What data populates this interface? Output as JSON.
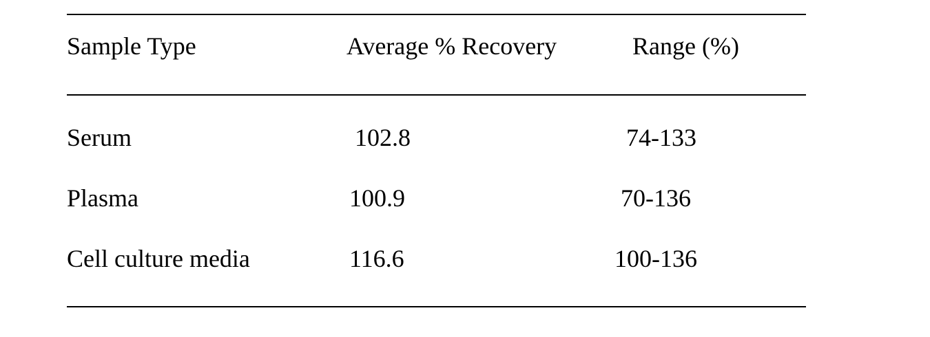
{
  "table": {
    "columns": [
      "Sample Type",
      "Average % Recovery",
      "Range (%)"
    ],
    "rows": [
      {
        "sample_type": "Serum",
        "average_recovery": "102.8",
        "range": "74-133"
      },
      {
        "sample_type": "Plasma",
        "average_recovery": "100.9",
        "range": "70-136"
      },
      {
        "sample_type": "Cell culture media",
        "average_recovery": "116.6",
        "range": "100-136"
      }
    ]
  }
}
